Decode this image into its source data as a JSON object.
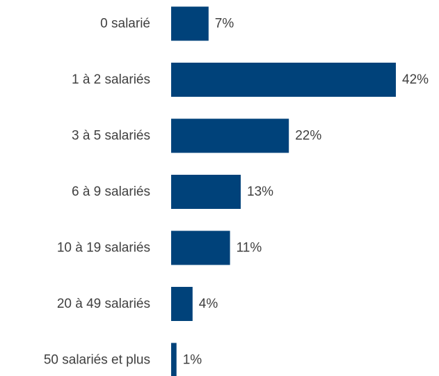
{
  "chart_data": {
    "type": "bar",
    "orientation": "horizontal",
    "categories": [
      "0 salarié",
      "1 à 2 salariés",
      "3 à 5 salariés",
      "6 à 9 salariés",
      "10 à 19 salariés",
      "20 à 49 salariés",
      "50 salariés et plus"
    ],
    "values": [
      7,
      42,
      22,
      13,
      11,
      4,
      1
    ],
    "value_labels": [
      "7%",
      "42%",
      "22%",
      "13%",
      "11%",
      "4%",
      "1%"
    ],
    "value_unit": "%",
    "xlim": [
      0,
      42
    ],
    "grid": false,
    "legend": "none",
    "bar_color": "#00427a",
    "label_color": "#404040"
  }
}
